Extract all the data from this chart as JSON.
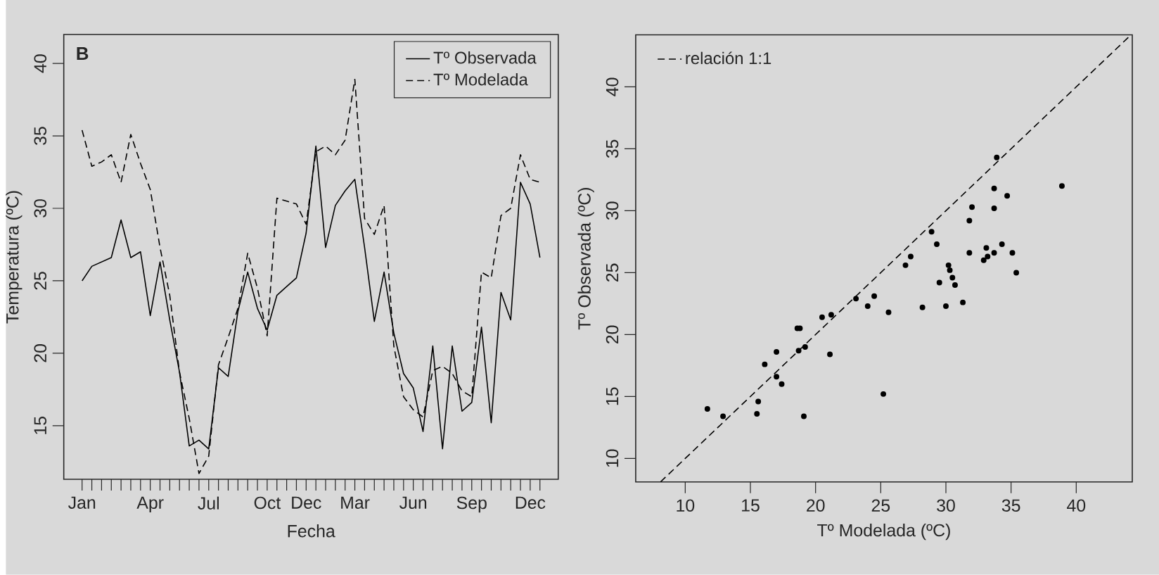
{
  "chart_data": [
    {
      "type": "line",
      "annotations": [
        "B"
      ],
      "xlabel": "Fecha",
      "ylabel": "Temperatura (ºC)",
      "legend": "top right",
      "categories": [
        "Jan",
        null,
        null,
        null,
        null,
        null,
        null,
        "Apr",
        null,
        null,
        null,
        null,
        null,
        "Jul",
        null,
        null,
        null,
        null,
        null,
        "Oct",
        null,
        null,
        null,
        "Dec",
        null,
        null,
        null,
        null,
        "Mar",
        null,
        null,
        null,
        null,
        null,
        "Jun",
        null,
        null,
        null,
        null,
        null,
        "Sep",
        null,
        null,
        null,
        null,
        null,
        "Dec",
        null
      ],
      "series": [
        {
          "name": "Tº Observada",
          "color": "#000000",
          "line_style": "solid",
          "values": [
            25.0,
            26.0,
            26.3,
            26.6,
            29.2,
            26.6,
            27.0,
            22.6,
            26.3,
            22.3,
            18.7,
            13.6,
            14.0,
            13.4,
            19.0,
            18.4,
            22.9,
            25.6,
            23.1,
            21.6,
            24.0,
            24.6,
            25.2,
            28.3,
            34.3,
            27.3,
            30.2,
            31.2,
            32.0,
            27.3,
            22.2,
            25.6,
            21.4,
            18.6,
            17.6,
            14.6,
            20.5,
            13.4,
            20.5,
            16.0,
            16.6,
            21.8,
            15.2,
            24.2,
            22.3,
            31.8,
            30.3,
            26.6
          ]
        },
        {
          "name": "Tº Modelada",
          "color": "#000000",
          "line_style": "dashed",
          "values": [
            35.4,
            32.9,
            33.2,
            33.7,
            31.8,
            35.1,
            33.1,
            31.3,
            27.3,
            24.0,
            18.7,
            15.5,
            11.7,
            12.9,
            19.2,
            21.1,
            23.1,
            26.9,
            24.5,
            21.2,
            30.7,
            30.5,
            30.3,
            28.9,
            33.9,
            34.3,
            33.7,
            34.7,
            38.9,
            29.3,
            28.2,
            30.2,
            20.5,
            17.0,
            16.1,
            15.6,
            18.8,
            19.1,
            18.6,
            17.4,
            17.0,
            25.6,
            25.2,
            29.5,
            30.0,
            33.7,
            32.0,
            31.8
          ]
        }
      ],
      "ylim": [
        11.3,
        42.0
      ],
      "yticks": [
        15,
        20,
        25,
        30,
        35,
        40
      ]
    },
    {
      "type": "scatter",
      "xlabel": "Tº Modelada (ºC)",
      "ylabel": "Tº Observada (ºC)",
      "legend": "top left",
      "series": [
        {
          "type": "scatter",
          "color": "#000000",
          "marker": "circle",
          "x": [
            35.4,
            32.9,
            33.2,
            33.7,
            31.8,
            35.1,
            33.1,
            31.3,
            27.3,
            24.0,
            18.7,
            15.5,
            11.7,
            12.9,
            19.2,
            21.1,
            23.1,
            26.9,
            24.5,
            21.2,
            30.7,
            30.5,
            30.3,
            28.9,
            33.9,
            34.3,
            33.7,
            34.7,
            38.9,
            29.3,
            28.2,
            30.2,
            20.5,
            17.0,
            16.1,
            15.6,
            18.8,
            19.1,
            18.6,
            17.4,
            17.0,
            25.6,
            25.2,
            29.5,
            30.0,
            33.7,
            32.0,
            31.8
          ],
          "values": [
            25.0,
            26.0,
            26.3,
            26.6,
            29.2,
            26.6,
            27.0,
            22.6,
            26.3,
            22.3,
            18.7,
            13.6,
            14.0,
            13.4,
            19.0,
            18.4,
            22.9,
            25.6,
            23.1,
            21.6,
            24.0,
            24.6,
            25.2,
            28.3,
            34.3,
            27.3,
            30.2,
            31.2,
            32.0,
            27.3,
            22.2,
            25.6,
            21.4,
            18.6,
            17.6,
            14.6,
            20.5,
            13.4,
            20.5,
            16.0,
            16.6,
            21.8,
            15.2,
            24.2,
            22.3,
            31.8,
            30.3,
            26.6
          ]
        },
        {
          "type": "line",
          "name": "relación 1:1",
          "color": "#000000",
          "line_style": "dashed",
          "x": [
            8.1,
            44.2
          ],
          "values": [
            8.1,
            44.2
          ]
        }
      ],
      "xlim": [
        6.2,
        44.3
      ],
      "xticks": [
        10,
        15,
        20,
        25,
        30,
        35,
        40
      ],
      "ylim": [
        8.1,
        44.2
      ],
      "yticks": [
        10,
        15,
        20,
        25,
        30,
        35,
        40
      ]
    }
  ]
}
